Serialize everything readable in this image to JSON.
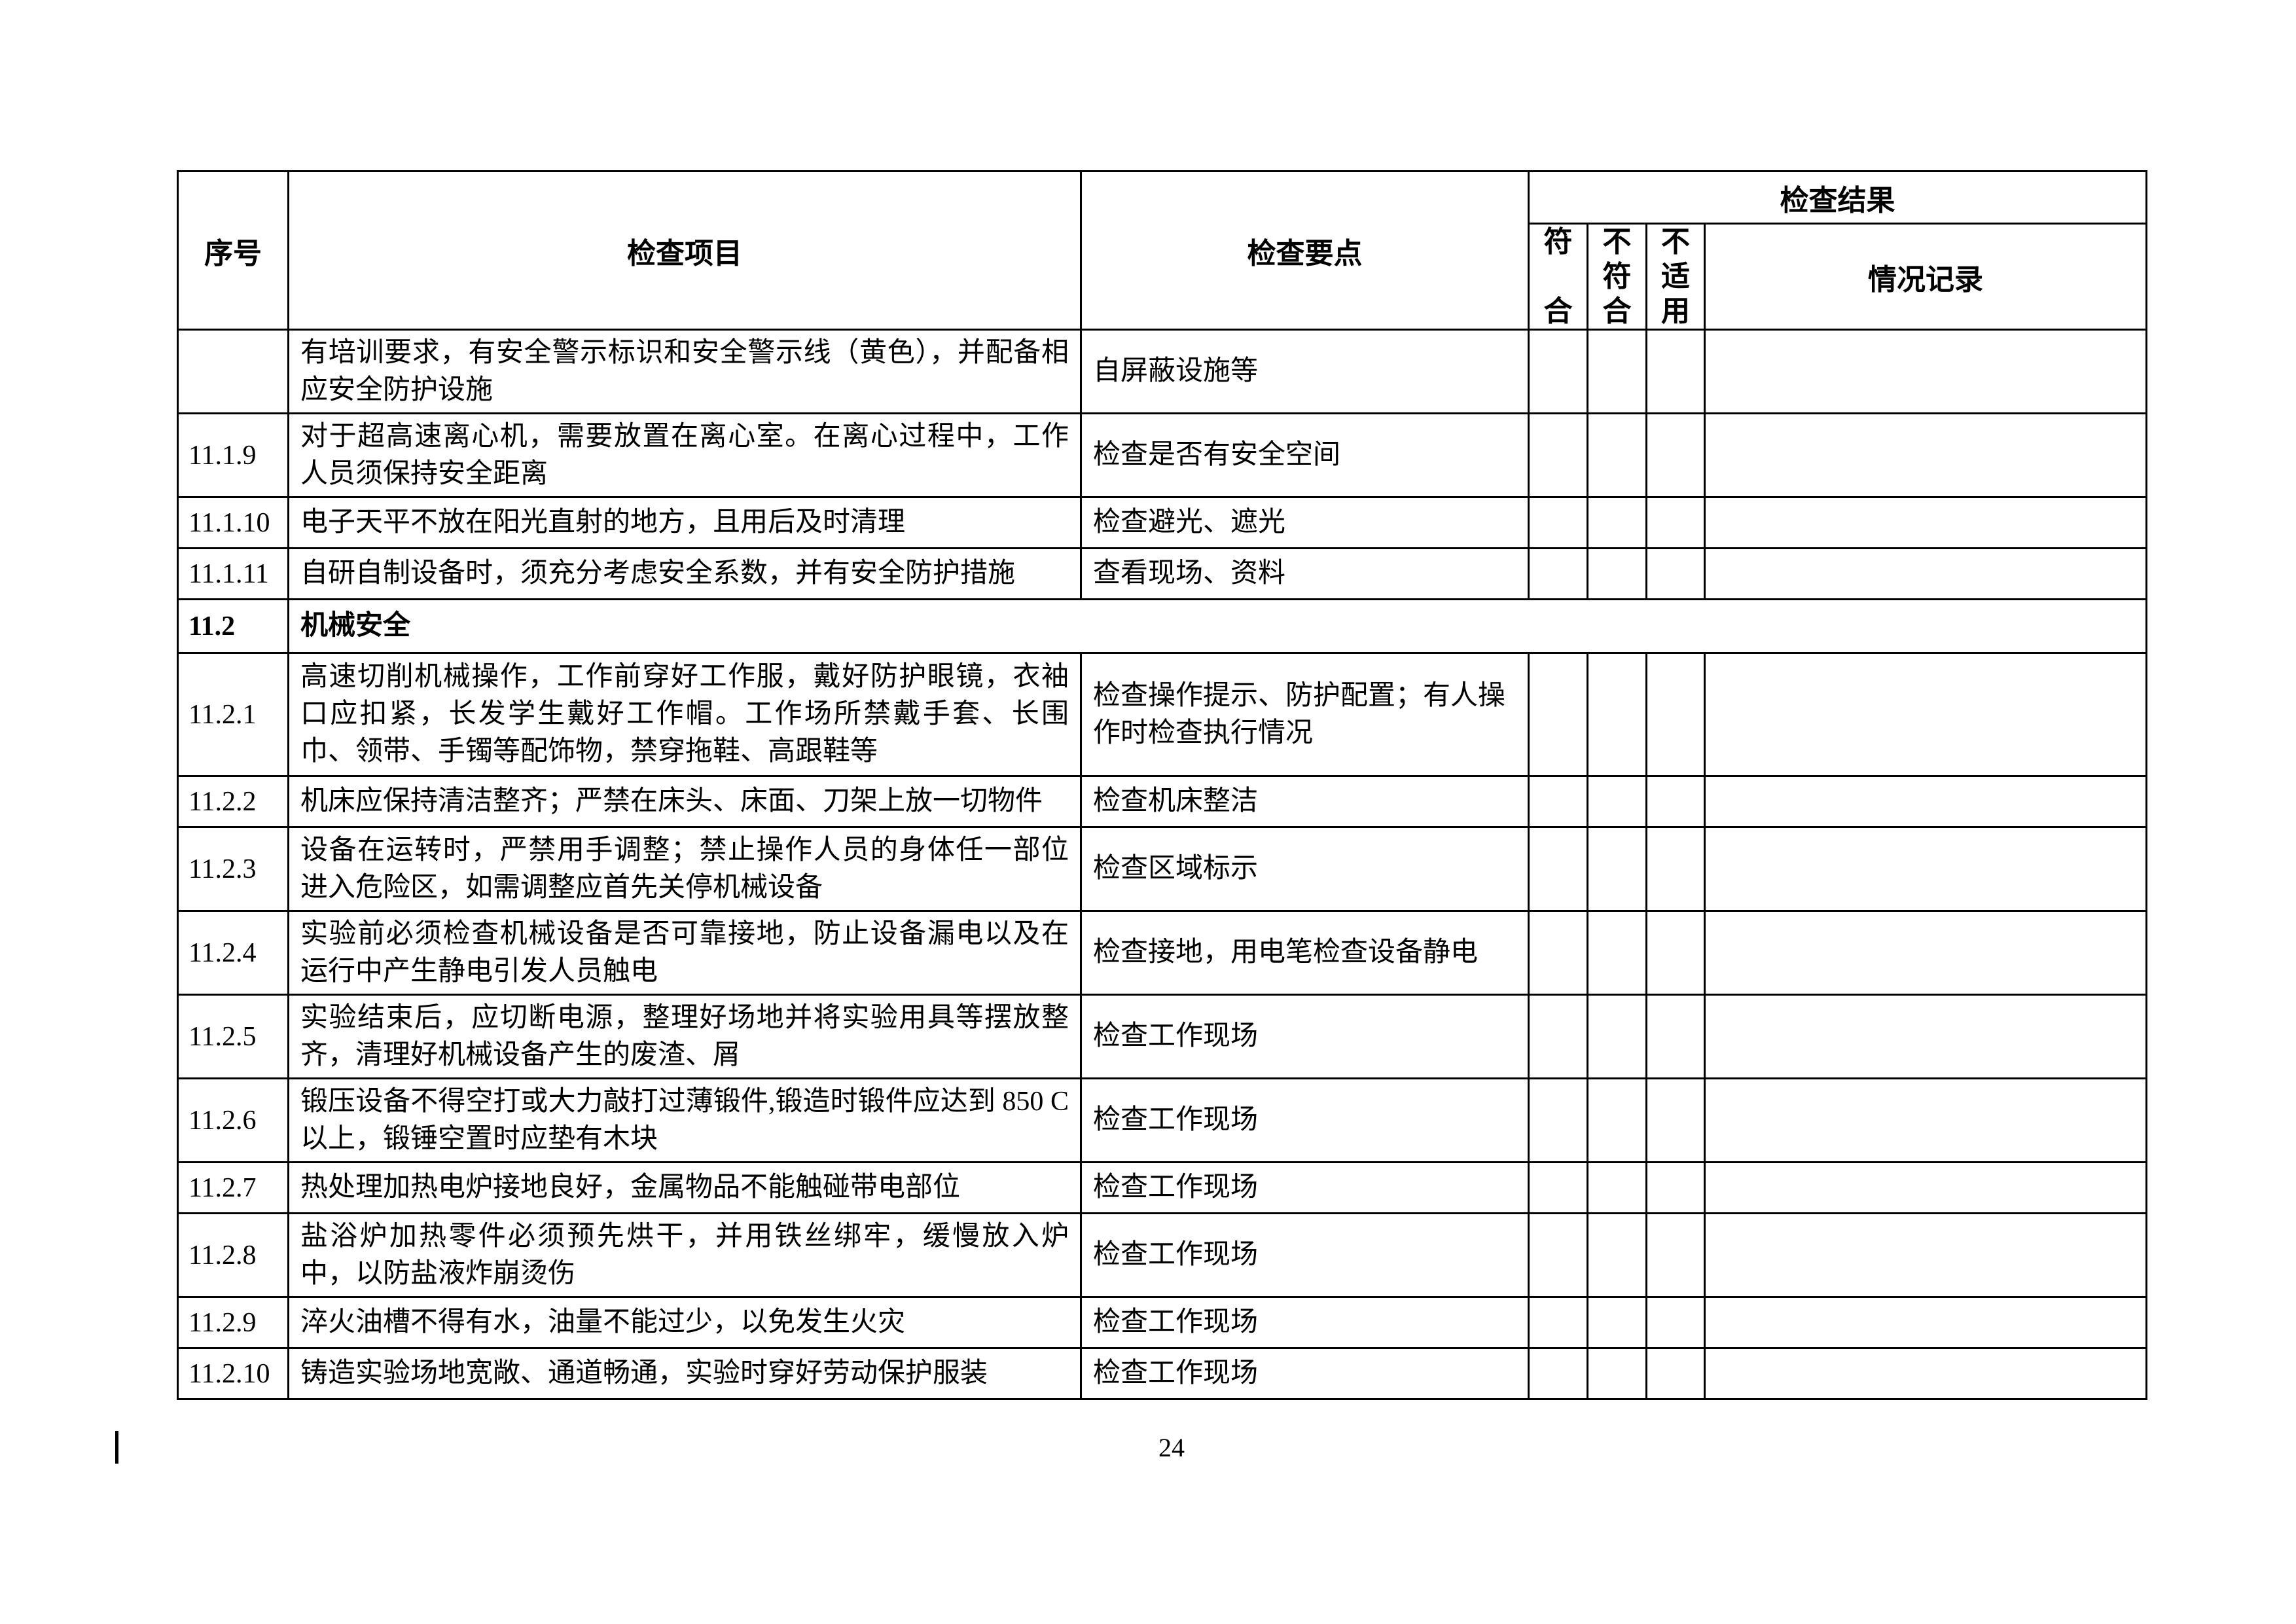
{
  "page": {
    "number": "24"
  },
  "colors": {
    "border": "#000000",
    "text": "#000000",
    "background": "#ffffff"
  },
  "table": {
    "headers": {
      "no": "序号",
      "item": "检查项目",
      "key_points": "检查要点",
      "result_group": "检查结果",
      "conform": "符合",
      "nonconform": "不符合",
      "not_applicable": "不适用",
      "record": "情况记录"
    },
    "section_row": {
      "no": "11.2",
      "title": "机械安全"
    },
    "rows": [
      {
        "no": "",
        "item": "有培训要求，有安全警示标识和安全警示线（黄色），并配备相应安全防护设施",
        "key": "自屏蔽设施等"
      },
      {
        "no": "11.1.9",
        "item": "对于超高速离心机，需要放置在离心室。在离心过程中，工作人员须保持安全距离",
        "key": "检查是否有安全空间"
      },
      {
        "no": "11.1.10",
        "item": "电子天平不放在阳光直射的地方，且用后及时清理",
        "key": "检查避光、遮光"
      },
      {
        "no": "11.1.11",
        "item": "自研自制设备时，须充分考虑安全系数，并有安全防护措施",
        "key": "查看现场、资料"
      },
      {
        "no": "11.2.1",
        "item": "高速切削机械操作，工作前穿好工作服，戴好防护眼镜，衣袖口应扣紧，长发学生戴好工作帽。工作场所禁戴手套、长围巾、领带、手镯等配饰物，禁穿拖鞋、高跟鞋等",
        "key": "检查操作提示、防护配置；有人操作时检查执行情况"
      },
      {
        "no": "11.2.2",
        "item": "机床应保持清洁整齐；严禁在床头、床面、刀架上放一切物件",
        "key": "检查机床整洁"
      },
      {
        "no": "11.2.3",
        "item": "设备在运转时，严禁用手调整；禁止操作人员的身体任一部位进入危险区，如需调整应首先关停机械设备",
        "key": "检查区域标示"
      },
      {
        "no": "11.2.4",
        "item": "实验前必须检查机械设备是否可靠接地，防止设备漏电以及在运行中产生静电引发人员触电",
        "key": "检查接地，用电笔检查设备静电"
      },
      {
        "no": "11.2.5",
        "item": "实验结束后，应切断电源，整理好场地并将实验用具等摆放整齐，清理好机械设备产生的废渣、屑",
        "key": "检查工作现场"
      },
      {
        "no": "11.2.6",
        "item": "锻压设备不得空打或大力敲打过薄锻件,锻造时锻件应达到 850 C 以上，锻锤空置时应垫有木块",
        "key": "检查工作现场"
      },
      {
        "no": "11.2.7",
        "item": "热处理加热电炉接地良好，金属物品不能触碰带电部位",
        "key": "检查工作现场"
      },
      {
        "no": "11.2.8",
        "item": "盐浴炉加热零件必须预先烘干，并用铁丝绑牢，缓慢放入炉中，以防盐液炸崩烫伤",
        "key": "检查工作现场"
      },
      {
        "no": "11.2.9",
        "item": "淬火油槽不得有水，油量不能过少，以免发生火灾",
        "key": "检查工作现场"
      },
      {
        "no": "11.2.10",
        "item": "铸造实验场地宽敞、通道畅通，实验时穿好劳动保护服装",
        "key": "检查工作现场"
      }
    ]
  }
}
